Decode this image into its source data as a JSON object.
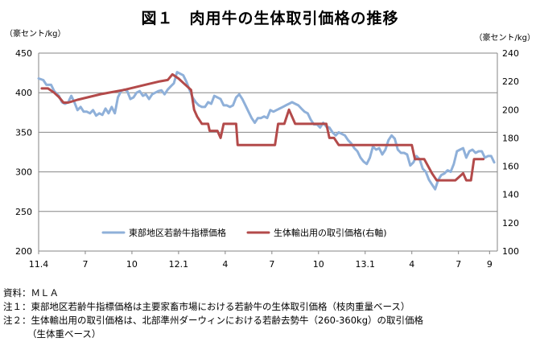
{
  "title": "図１　肉用牛の生体取引価格の推移",
  "unit_left": "（豪セント/kg）",
  "unit_right": "（豪セント/kg）",
  "notes": [
    "資料：ＭＬＡ",
    "注１：東部地区若齢牛指標価格は主要家畜市場における若齢牛の生体取引価格（枝肉重量ベース）",
    "注２：生体輸出用の取引価格は、北部準州ダーウィンにおける若齢去勢牛（260-360kg）の取引価格",
    "（生体重ベース）"
  ],
  "colors": {
    "series1": "#8fb0d9",
    "series2": "#b34a4a",
    "axis": "#868686"
  },
  "chart_data": {
    "type": "line",
    "title": "図１　肉用牛の生体取引価格の推移",
    "x_tick_labels": [
      "11.4",
      "7",
      "10",
      "12.1",
      "4",
      "7",
      "10",
      "13.1",
      "4",
      "7",
      "9"
    ],
    "x_tick_positions": [
      0,
      3,
      6,
      9,
      12,
      15,
      18,
      21,
      24,
      27,
      29
    ],
    "xlim": [
      0,
      29.5
    ],
    "ylim_left": [
      200,
      450
    ],
    "yticks_left": [
      200,
      250,
      300,
      350,
      400,
      450
    ],
    "ylim_right": [
      100,
      240
    ],
    "yticks_right": [
      100,
      120,
      140,
      160,
      180,
      200,
      220,
      240
    ],
    "ylabel_left": "（豪セント/kg）",
    "ylabel_right": "（豪セント/kg）",
    "grid": true,
    "legend_position": "lower-center",
    "series": [
      {
        "name": "東部地区若齢牛指標価格",
        "axis": "left",
        "color": "#8fb0d9",
        "points": [
          [
            0.0,
            418
          ],
          [
            0.3,
            416
          ],
          [
            0.5,
            410
          ],
          [
            0.8,
            410
          ],
          [
            1.0,
            402
          ],
          [
            1.3,
            396
          ],
          [
            1.5,
            388
          ],
          [
            1.7,
            386
          ],
          [
            1.9,
            388
          ],
          [
            2.1,
            396
          ],
          [
            2.3,
            388
          ],
          [
            2.5,
            378
          ],
          [
            2.7,
            382
          ],
          [
            2.9,
            376
          ],
          [
            3.1,
            376
          ],
          [
            3.3,
            374
          ],
          [
            3.5,
            378
          ],
          [
            3.7,
            371
          ],
          [
            3.9,
            374
          ],
          [
            4.1,
            372
          ],
          [
            4.3,
            380
          ],
          [
            4.5,
            374
          ],
          [
            4.7,
            382
          ],
          [
            4.9,
            374
          ],
          [
            5.1,
            394
          ],
          [
            5.3,
            402
          ],
          [
            5.5,
            404
          ],
          [
            5.7,
            402
          ],
          [
            5.9,
            392
          ],
          [
            6.1,
            394
          ],
          [
            6.3,
            400
          ],
          [
            6.5,
            402
          ],
          [
            6.7,
            396
          ],
          [
            6.9,
            398
          ],
          [
            7.1,
            392
          ],
          [
            7.3,
            398
          ],
          [
            7.5,
            400
          ],
          [
            7.7,
            402
          ],
          [
            7.9,
            403
          ],
          [
            8.1,
            398
          ],
          [
            8.3,
            404
          ],
          [
            8.5,
            408
          ],
          [
            8.7,
            412
          ],
          [
            8.9,
            426
          ],
          [
            9.1,
            424
          ],
          [
            9.3,
            422
          ],
          [
            9.5,
            414
          ],
          [
            9.7,
            404
          ],
          [
            9.9,
            394
          ],
          [
            10.1,
            388
          ],
          [
            10.3,
            384
          ],
          [
            10.5,
            382
          ],
          [
            10.7,
            382
          ],
          [
            10.9,
            388
          ],
          [
            11.1,
            386
          ],
          [
            11.3,
            396
          ],
          [
            11.5,
            394
          ],
          [
            11.7,
            392
          ],
          [
            11.9,
            384
          ],
          [
            12.1,
            384
          ],
          [
            12.3,
            382
          ],
          [
            12.5,
            384
          ],
          [
            12.7,
            394
          ],
          [
            12.9,
            398
          ],
          [
            13.1,
            392
          ],
          [
            13.3,
            384
          ],
          [
            13.5,
            376
          ],
          [
            13.7,
            368
          ],
          [
            13.9,
            362
          ],
          [
            14.1,
            368
          ],
          [
            14.3,
            368
          ],
          [
            14.5,
            370
          ],
          [
            14.7,
            368
          ],
          [
            14.9,
            378
          ],
          [
            15.1,
            376
          ],
          [
            15.3,
            378
          ],
          [
            15.5,
            380
          ],
          [
            15.7,
            382
          ],
          [
            15.9,
            384
          ],
          [
            16.1,
            386
          ],
          [
            16.3,
            388
          ],
          [
            16.5,
            386
          ],
          [
            16.7,
            384
          ],
          [
            16.9,
            380
          ],
          [
            17.1,
            376
          ],
          [
            17.3,
            374
          ],
          [
            17.5,
            366
          ],
          [
            17.7,
            360
          ],
          [
            17.9,
            360
          ],
          [
            18.1,
            356
          ],
          [
            18.3,
            362
          ],
          [
            18.5,
            357
          ],
          [
            18.7,
            356
          ],
          [
            18.9,
            350
          ],
          [
            19.1,
            346
          ],
          [
            19.3,
            350
          ],
          [
            19.5,
            348
          ],
          [
            19.7,
            346
          ],
          [
            19.9,
            340
          ],
          [
            20.1,
            336
          ],
          [
            20.3,
            330
          ],
          [
            20.5,
            326
          ],
          [
            20.7,
            318
          ],
          [
            20.9,
            313
          ],
          [
            21.1,
            310
          ],
          [
            21.3,
            318
          ],
          [
            21.5,
            332
          ],
          [
            21.7,
            328
          ],
          [
            21.9,
            330
          ],
          [
            22.1,
            322
          ],
          [
            22.3,
            328
          ],
          [
            22.5,
            340
          ],
          [
            22.7,
            346
          ],
          [
            22.9,
            342
          ],
          [
            23.1,
            328
          ],
          [
            23.3,
            324
          ],
          [
            23.5,
            324
          ],
          [
            23.7,
            322
          ],
          [
            23.9,
            308
          ],
          [
            24.1,
            312
          ],
          [
            24.3,
            320
          ],
          [
            24.5,
            316
          ],
          [
            24.7,
            304
          ],
          [
            24.9,
            300
          ],
          [
            25.1,
            290
          ],
          [
            25.3,
            284
          ],
          [
            25.5,
            278
          ],
          [
            25.7,
            290
          ],
          [
            25.9,
            296
          ],
          [
            26.1,
            298
          ],
          [
            26.3,
            302
          ],
          [
            26.5,
            300
          ],
          [
            26.7,
            310
          ],
          [
            26.9,
            326
          ],
          [
            27.1,
            328
          ],
          [
            27.3,
            330
          ],
          [
            27.5,
            318
          ],
          [
            27.7,
            326
          ],
          [
            27.9,
            328
          ],
          [
            28.1,
            324
          ],
          [
            28.3,
            326
          ],
          [
            28.5,
            326
          ],
          [
            28.7,
            318
          ],
          [
            28.9,
            320
          ],
          [
            29.1,
            320
          ],
          [
            29.3,
            312
          ]
        ]
      },
      {
        "name": "生体輸出用の取引価格(右軸)",
        "axis": "right",
        "color": "#b34a4a",
        "points": [
          [
            0.2,
            215
          ],
          [
            0.6,
            215
          ],
          [
            1.0,
            212
          ],
          [
            1.3,
            209
          ],
          [
            1.6,
            205
          ],
          [
            1.9,
            205
          ],
          [
            2.5,
            207
          ],
          [
            4.0,
            211
          ],
          [
            5.5,
            214
          ],
          [
            7.0,
            218
          ],
          [
            7.8,
            220
          ],
          [
            8.3,
            221
          ],
          [
            8.6,
            225
          ],
          [
            9.0,
            222
          ],
          [
            9.4,
            218
          ],
          [
            9.8,
            214
          ],
          [
            10.0,
            200
          ],
          [
            10.2,
            195
          ],
          [
            10.5,
            190
          ],
          [
            10.9,
            190
          ],
          [
            11.0,
            185
          ],
          [
            11.5,
            185
          ],
          [
            11.7,
            180
          ],
          [
            11.9,
            190
          ],
          [
            12.1,
            190
          ],
          [
            12.7,
            190
          ],
          [
            12.8,
            175
          ],
          [
            13.5,
            175
          ],
          [
            15.2,
            175
          ],
          [
            15.4,
            190
          ],
          [
            15.8,
            190
          ],
          [
            16.1,
            200
          ],
          [
            16.5,
            190
          ],
          [
            18.5,
            190
          ],
          [
            18.7,
            180
          ],
          [
            19.0,
            180
          ],
          [
            19.3,
            175
          ],
          [
            20.0,
            175
          ],
          [
            24.0,
            175
          ],
          [
            24.2,
            165
          ],
          [
            24.8,
            165
          ],
          [
            25.3,
            155
          ],
          [
            25.6,
            150
          ],
          [
            26.8,
            150
          ],
          [
            27.3,
            155
          ],
          [
            27.5,
            150
          ],
          [
            27.8,
            150
          ],
          [
            28.0,
            165
          ],
          [
            28.6,
            165
          ]
        ]
      }
    ]
  }
}
